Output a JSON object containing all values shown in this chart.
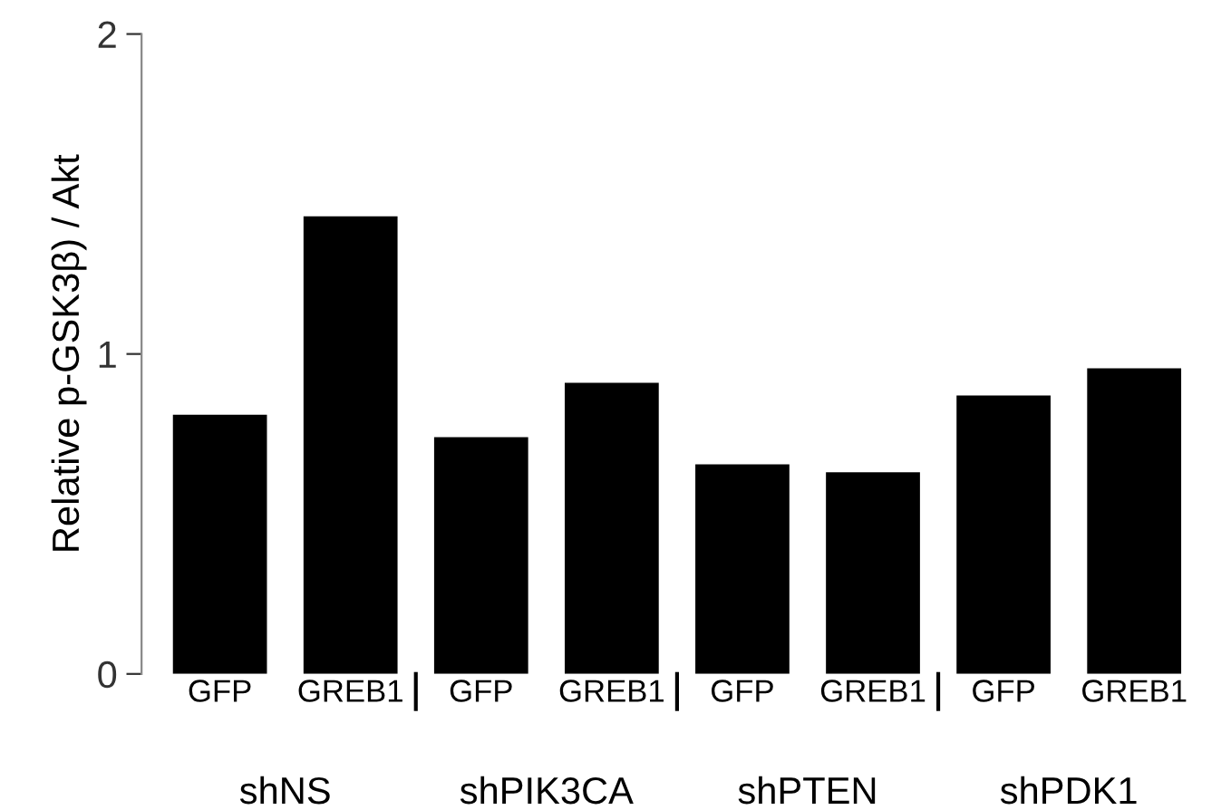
{
  "chart_data": {
    "type": "bar",
    "ylabel": "Relative p-GSK3β) / Akt",
    "categories": [
      "GFP",
      "GREB1",
      "GFP",
      "GREB1",
      "GFP",
      "GREB1",
      "GFP",
      "GREB1"
    ],
    "values": [
      0.81,
      1.43,
      0.74,
      0.91,
      0.655,
      0.63,
      0.87,
      0.955
    ],
    "color": "#000000",
    "annotations": [
      "shNS",
      "shPIK3CA",
      "shPTEN",
      "shPDK1"
    ],
    "ylim": [
      0,
      2
    ],
    "yticks": [
      0,
      1,
      2
    ],
    "grid": false,
    "legend": false
  }
}
